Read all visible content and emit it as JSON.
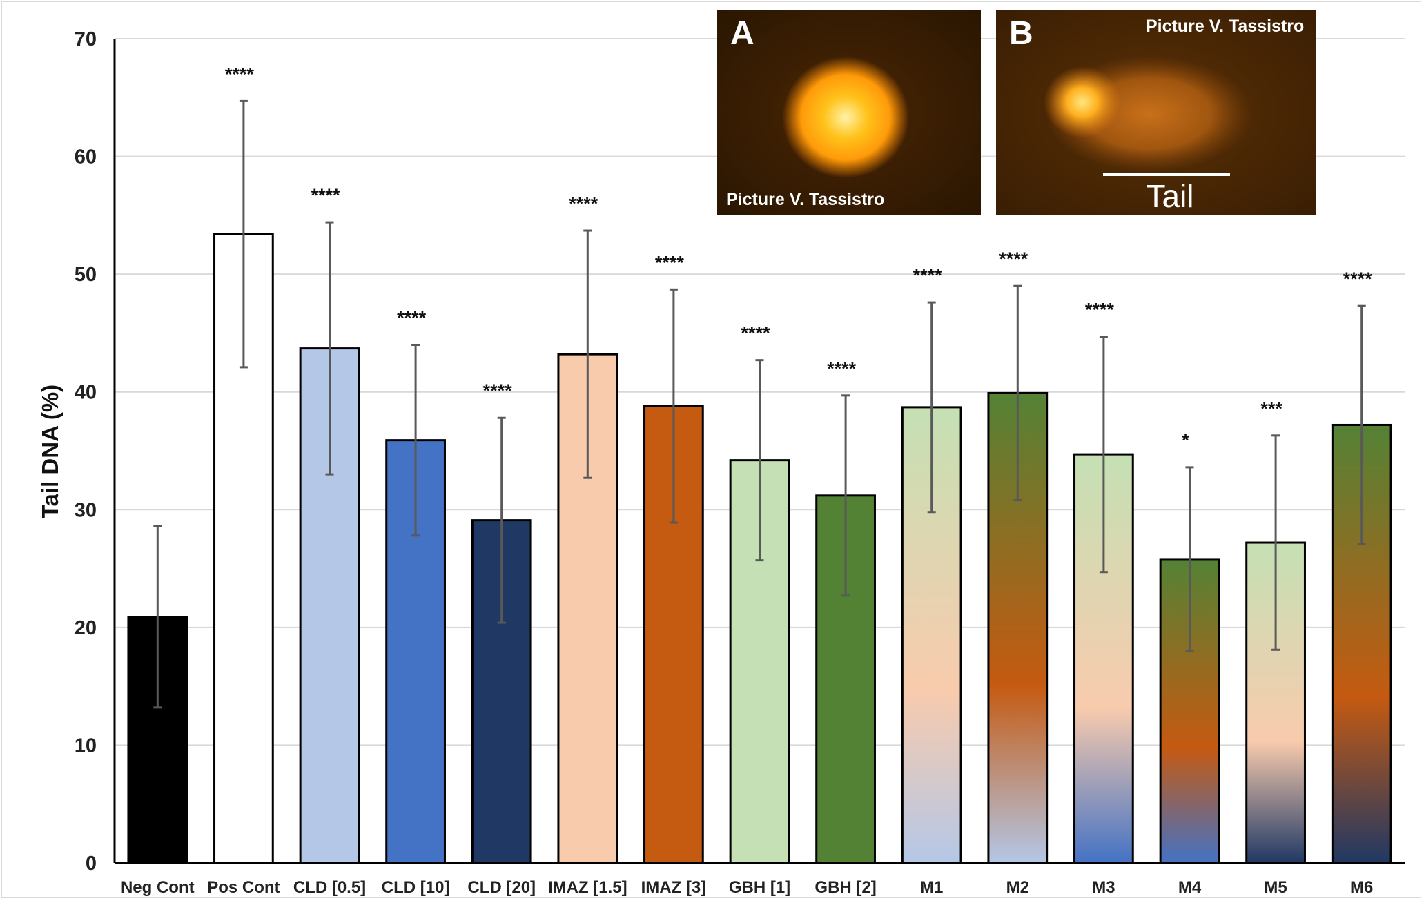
{
  "chart_data": {
    "type": "bar",
    "ylabel": "Tail DNA (%)",
    "xlabel": "",
    "ylim": [
      0,
      70
    ],
    "yticks": [
      0,
      10,
      20,
      30,
      40,
      50,
      60,
      70
    ],
    "grid": true,
    "categories": [
      "Neg Cont",
      "Pos Cont",
      "CLD [0.5]",
      "CLD [10]",
      "CLD [20]",
      "IMAZ [1.5]",
      "IMAZ [3]",
      "GBH [1]",
      "GBH [2]",
      "M1",
      "M2",
      "M3",
      "M4",
      "M5",
      "M6"
    ],
    "values": [
      20.9,
      53.4,
      43.7,
      35.9,
      29.1,
      43.2,
      38.8,
      34.2,
      31.2,
      38.7,
      39.9,
      34.7,
      25.8,
      27.2,
      37.2
    ],
    "error": [
      7.7,
      11.3,
      10.7,
      8.1,
      8.7,
      10.5,
      9.9,
      8.5,
      8.5,
      8.9,
      9.1,
      10.0,
      7.8,
      9.1,
      10.1
    ],
    "significance": [
      "",
      "****",
      "****",
      "****",
      "****",
      "****",
      "****",
      "****",
      "****",
      "****",
      "****",
      "****",
      "*",
      "***",
      "****"
    ],
    "colors": [
      [
        "#000000"
      ],
      [
        "#ffffff"
      ],
      [
        "#b4c7e7"
      ],
      [
        "#4472c4"
      ],
      [
        "#203864"
      ],
      [
        "#f8cbad"
      ],
      [
        "#c55a11"
      ],
      [
        "#c5e0b4"
      ],
      [
        "#548235"
      ],
      [
        "#b4c7e7",
        "#f8cbad",
        "#c5e0b4"
      ],
      [
        "#b4c7e7",
        "#c55a11",
        "#548235"
      ],
      [
        "#4472c4",
        "#f8cbad",
        "#c5e0b4"
      ],
      [
        "#4472c4",
        "#c55a11",
        "#548235"
      ],
      [
        "#203864",
        "#f8cbad",
        "#c5e0b4"
      ],
      [
        "#203864",
        "#c55a11",
        "#548235"
      ]
    ]
  },
  "insets": [
    {
      "letter": "A",
      "credit": "Picture V. Tassistro"
    },
    {
      "letter": "B",
      "credit": "Picture V. Tassistro",
      "tail_label": "Tail"
    }
  ]
}
